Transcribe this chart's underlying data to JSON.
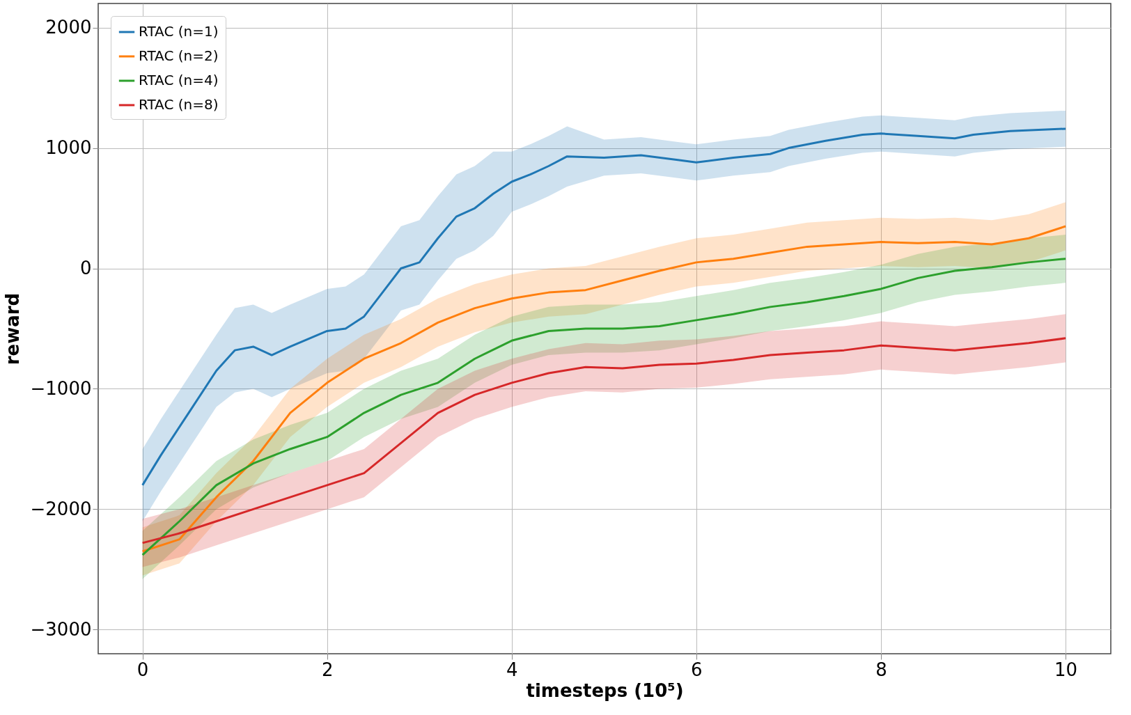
{
  "chart_data": {
    "type": "line",
    "xlabel": "timesteps (10⁵)",
    "ylabel": "reward",
    "xlim": [
      -0.48,
      10.49
    ],
    "ylim": [
      -3200,
      2200
    ],
    "xticks": [
      0,
      2,
      4,
      6,
      8,
      10
    ],
    "yticks": [
      -3000,
      -2000,
      -1000,
      0,
      1000,
      2000
    ],
    "grid": true,
    "legend": "top left",
    "marker": "none",
    "line_style": "solid",
    "series": [
      {
        "name": "RTAC (n=1)",
        "color": "#1f77b4",
        "x": [
          0,
          0.2,
          0.5,
          0.8,
          1.0,
          1.2,
          1.4,
          1.6,
          2.0,
          2.2,
          2.4,
          2.6,
          2.8,
          3.0,
          3.2,
          3.4,
          3.6,
          3.8,
          4.0,
          4.2,
          4.4,
          4.6,
          5.0,
          5.4,
          5.8,
          6.0,
          6.4,
          6.8,
          7.0,
          7.4,
          7.8,
          8.0,
          8.4,
          8.8,
          9.0,
          9.4,
          10
        ],
        "values": [
          -1800,
          -1550,
          -1200,
          -850,
          -680,
          -650,
          -720,
          -650,
          -520,
          -500,
          -400,
          -200,
          0,
          50,
          250,
          430,
          500,
          620,
          720,
          780,
          850,
          930,
          920,
          940,
          900,
          880,
          920,
          950,
          1000,
          1060,
          1110,
          1120,
          1100,
          1080,
          1110,
          1140,
          1160
        ],
        "lower": [
          -2100,
          -1850,
          -1500,
          -1150,
          -1030,
          -1000,
          -1070,
          -1000,
          -870,
          -850,
          -750,
          -550,
          -350,
          -300,
          -100,
          80,
          150,
          270,
          470,
          530,
          600,
          680,
          770,
          790,
          750,
          730,
          770,
          800,
          850,
          910,
          960,
          970,
          950,
          930,
          960,
          990,
          1010
        ],
        "upper": [
          -1500,
          -1250,
          -900,
          -550,
          -330,
          -300,
          -370,
          -300,
          -170,
          -150,
          -50,
          150,
          350,
          400,
          600,
          780,
          850,
          970,
          970,
          1030,
          1100,
          1180,
          1070,
          1090,
          1050,
          1030,
          1070,
          1100,
          1150,
          1210,
          1260,
          1270,
          1250,
          1230,
          1260,
          1290,
          1310
        ]
      },
      {
        "name": "RTAC (n=2)",
        "color": "#ff7f0e",
        "x": [
          0,
          0.4,
          0.8,
          1.2,
          1.6,
          2.0,
          2.4,
          2.8,
          3.2,
          3.6,
          4.0,
          4.4,
          4.8,
          5.2,
          5.6,
          6.0,
          6.4,
          6.8,
          7.2,
          7.6,
          8.0,
          8.4,
          8.8,
          9.2,
          9.6,
          10
        ],
        "values": [
          -2350,
          -2250,
          -1900,
          -1600,
          -1200,
          -950,
          -750,
          -620,
          -450,
          -330,
          -250,
          -200,
          -180,
          -100,
          -20,
          50,
          80,
          130,
          180,
          200,
          220,
          210,
          220,
          200,
          250,
          350
        ],
        "lower": [
          -2550,
          -2450,
          -2100,
          -1800,
          -1400,
          -1150,
          -950,
          -820,
          -650,
          -530,
          -450,
          -400,
          -380,
          -300,
          -220,
          -150,
          -120,
          -70,
          -20,
          0,
          20,
          10,
          20,
          0,
          50,
          150
        ],
        "upper": [
          -2150,
          -2050,
          -1700,
          -1400,
          -1000,
          -750,
          -550,
          -420,
          -250,
          -130,
          -50,
          0,
          20,
          100,
          180,
          250,
          280,
          330,
          380,
          400,
          420,
          410,
          420,
          400,
          450,
          550
        ]
      },
      {
        "name": "RTAC (n=4)",
        "color": "#2ca02c",
        "x": [
          0,
          0.4,
          0.8,
          1.2,
          1.6,
          2.0,
          2.4,
          2.8,
          3.2,
          3.6,
          4.0,
          4.4,
          4.8,
          5.2,
          5.6,
          6.0,
          6.4,
          6.8,
          7.2,
          7.6,
          8.0,
          8.4,
          8.8,
          9.2,
          9.6,
          10
        ],
        "values": [
          -2380,
          -2100,
          -1800,
          -1620,
          -1500,
          -1400,
          -1200,
          -1050,
          -950,
          -750,
          -600,
          -520,
          -500,
          -500,
          -480,
          -430,
          -380,
          -320,
          -280,
          -230,
          -170,
          -80,
          -20,
          10,
          50,
          80
        ],
        "lower": [
          -2580,
          -2300,
          -2000,
          -1820,
          -1700,
          -1600,
          -1400,
          -1250,
          -1150,
          -950,
          -800,
          -720,
          -700,
          -700,
          -680,
          -630,
          -580,
          -520,
          -480,
          -430,
          -370,
          -280,
          -220,
          -190,
          -150,
          -120
        ],
        "upper": [
          -2180,
          -1900,
          -1600,
          -1420,
          -1300,
          -1200,
          -1000,
          -850,
          -750,
          -550,
          -400,
          -320,
          -300,
          -300,
          -280,
          -230,
          -180,
          -120,
          -80,
          -30,
          30,
          120,
          180,
          210,
          250,
          280
        ]
      },
      {
        "name": "RTAC (n=8)",
        "color": "#d62728",
        "x": [
          0,
          0.4,
          0.8,
          1.2,
          1.6,
          2.0,
          2.4,
          2.8,
          3.2,
          3.6,
          4.0,
          4.4,
          4.8,
          5.2,
          5.6,
          6.0,
          6.4,
          6.8,
          7.2,
          7.6,
          8.0,
          8.4,
          8.8,
          9.2,
          9.6,
          10
        ],
        "values": [
          -2280,
          -2200,
          -2100,
          -2000,
          -1900,
          -1800,
          -1700,
          -1450,
          -1200,
          -1050,
          -950,
          -870,
          -820,
          -830,
          -800,
          -790,
          -760,
          -720,
          -700,
          -680,
          -640,
          -660,
          -680,
          -650,
          -620,
          -580
        ],
        "lower": [
          -2480,
          -2400,
          -2300,
          -2200,
          -2100,
          -2000,
          -1900,
          -1650,
          -1400,
          -1250,
          -1150,
          -1070,
          -1020,
          -1030,
          -1000,
          -990,
          -960,
          -920,
          -900,
          -880,
          -840,
          -860,
          -880,
          -850,
          -820,
          -780
        ],
        "upper": [
          -2080,
          -2000,
          -1900,
          -1800,
          -1700,
          -1600,
          -1500,
          -1250,
          -1000,
          -850,
          -750,
          -670,
          -620,
          -630,
          -600,
          -590,
          -560,
          -520,
          -500,
          -480,
          -440,
          -460,
          -480,
          -450,
          -420,
          -380
        ]
      }
    ]
  }
}
